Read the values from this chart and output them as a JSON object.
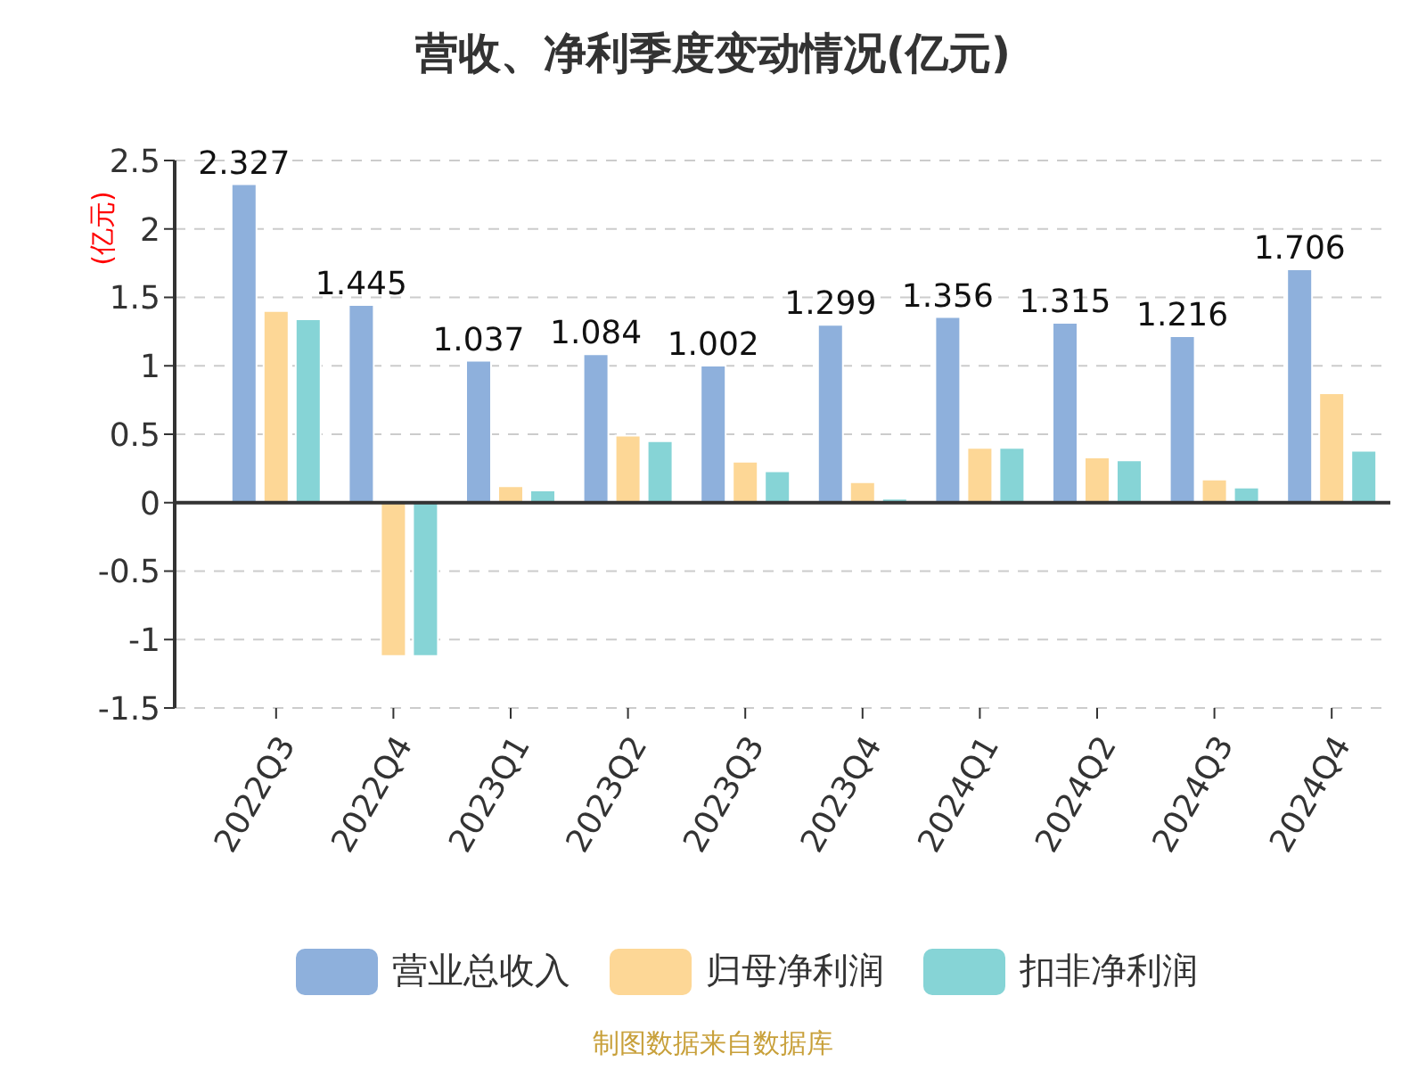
{
  "chart_data": {
    "type": "bar",
    "title": "营收、净利季度变动情况(亿元)",
    "ylabel": "(亿元)",
    "categories": [
      "2022Q3",
      "2022Q4",
      "2023Q1",
      "2023Q2",
      "2023Q3",
      "2023Q4",
      "2024Q1",
      "2024Q2",
      "2024Q3",
      "2024Q4"
    ],
    "series": [
      {
        "name": "营业总收入",
        "color": "#8eb0dc",
        "values": [
          2.327,
          1.445,
          1.037,
          1.084,
          1.002,
          1.299,
          1.356,
          1.315,
          1.216,
          1.706
        ],
        "value_labels": [
          "2.327",
          "1.445",
          "1.037",
          "1.084",
          "1.002",
          "1.299",
          "1.356",
          "1.315",
          "1.216",
          "1.706"
        ]
      },
      {
        "name": "归母净利润",
        "color": "#fdd796",
        "values": [
          1.4,
          -1.12,
          0.12,
          0.49,
          0.3,
          0.15,
          0.4,
          0.33,
          0.17,
          0.8
        ]
      },
      {
        "name": "扣非净利润",
        "color": "#86d4d6",
        "values": [
          1.34,
          -1.12,
          0.09,
          0.45,
          0.23,
          0.03,
          0.4,
          0.31,
          0.11,
          0.38
        ]
      }
    ],
    "ylim": [
      -1.5,
      2.5
    ],
    "yticks": [
      -1.5,
      -1,
      -0.5,
      0,
      0.5,
      1,
      1.5,
      2,
      2.5
    ],
    "grid": "y",
    "legend": "bottom",
    "annotations": [
      "制图数据来自数据库"
    ]
  }
}
